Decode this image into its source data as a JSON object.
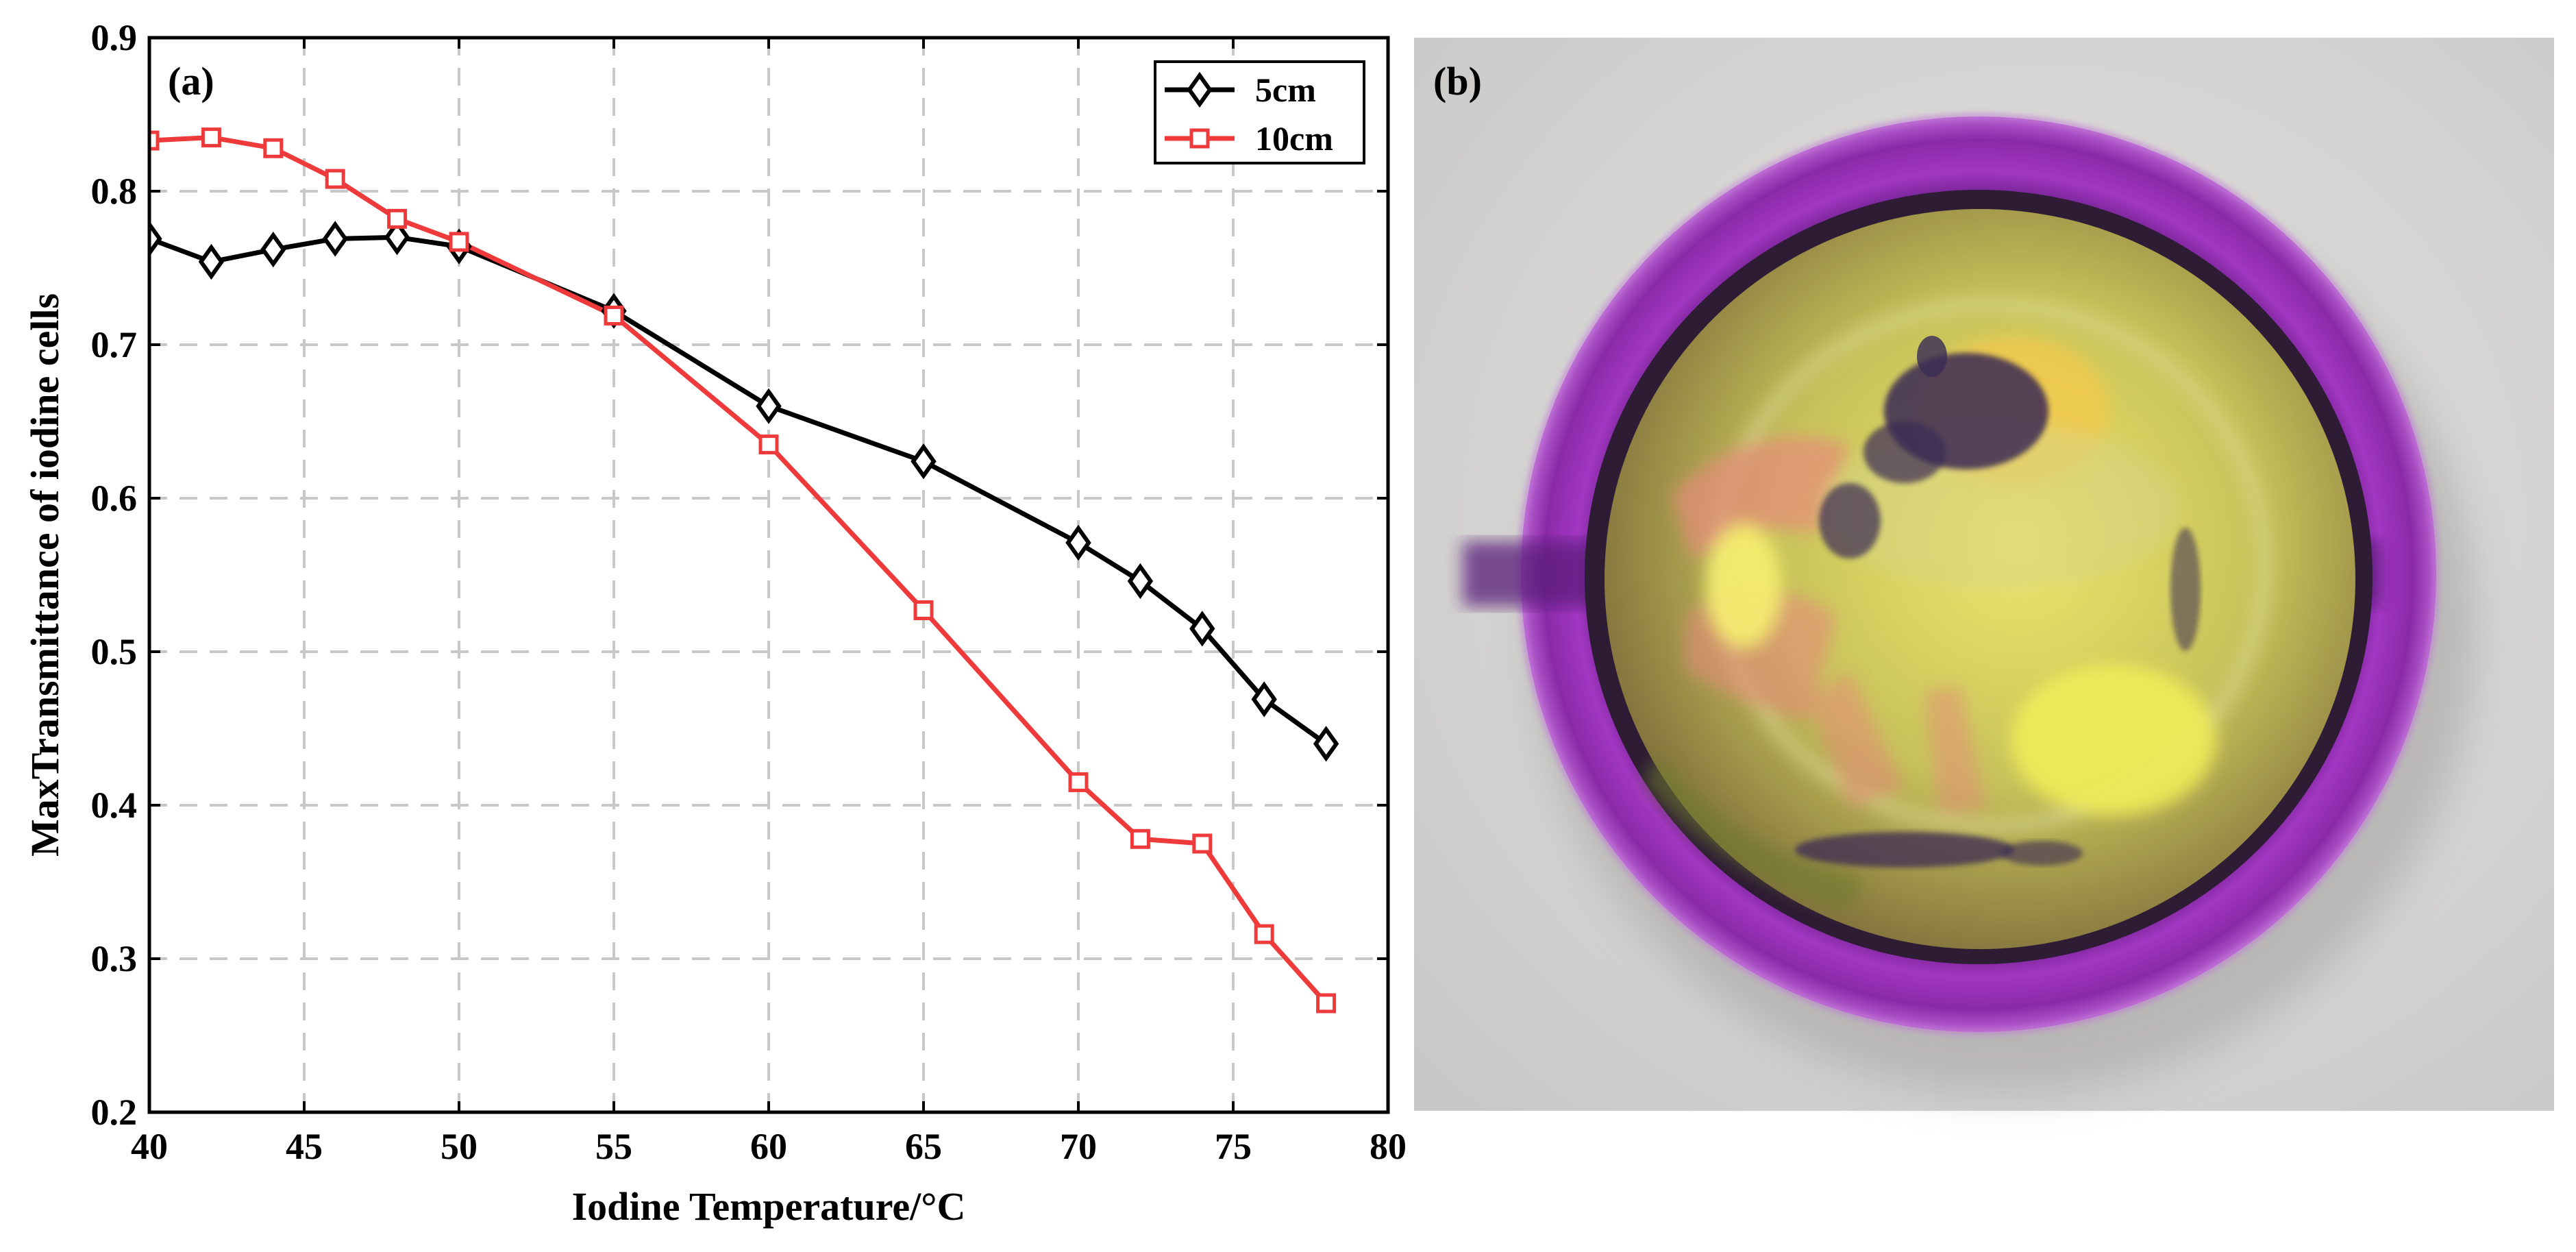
{
  "panel_a": {
    "label": "(a)"
  },
  "panel_b": {
    "label": "(b)"
  },
  "chart_data": {
    "type": "line",
    "xlabel": "Iodine Temperature/°C",
    "ylabel": "MaxTransmittance of iodine cells",
    "xlim": [
      40,
      80
    ],
    "ylim": [
      0.2,
      0.9
    ],
    "xticks": [
      40,
      45,
      50,
      55,
      60,
      65,
      70,
      75,
      80
    ],
    "yticks": [
      0.2,
      0.3,
      0.4,
      0.5,
      0.6,
      0.7,
      0.8,
      0.9
    ],
    "grid": true,
    "legend_position": "top-right",
    "series": [
      {
        "name": "5cm",
        "color": "#000000",
        "marker": "diamond",
        "x": [
          40,
          42,
          44,
          46,
          48,
          50,
          55,
          60,
          65,
          70,
          72,
          74,
          76,
          78
        ],
        "y": [
          0.769,
          0.754,
          0.762,
          0.769,
          0.77,
          0.764,
          0.722,
          0.66,
          0.624,
          0.571,
          0.546,
          0.515,
          0.469,
          0.44
        ]
      },
      {
        "name": "10cm",
        "color": "#ee3a3a",
        "marker": "square",
        "x": [
          40,
          42,
          44,
          46,
          48,
          50,
          55,
          60,
          65,
          70,
          72,
          74,
          76,
          78
        ],
        "y": [
          0.833,
          0.835,
          0.828,
          0.808,
          0.782,
          0.767,
          0.719,
          0.635,
          0.527,
          0.415,
          0.378,
          0.375,
          0.316,
          0.271
        ]
      }
    ]
  },
  "photo": {
    "description_icon": "iodine-cell-photo",
    "colors": {
      "background": "#d9d8d6",
      "ring": "#9a2fb5",
      "ring_dark": "#4a1466",
      "liquid": "#c9c95a",
      "glow": "#f0e860",
      "pink": "#e58a7a",
      "crystals": "#3a2a55"
    }
  }
}
